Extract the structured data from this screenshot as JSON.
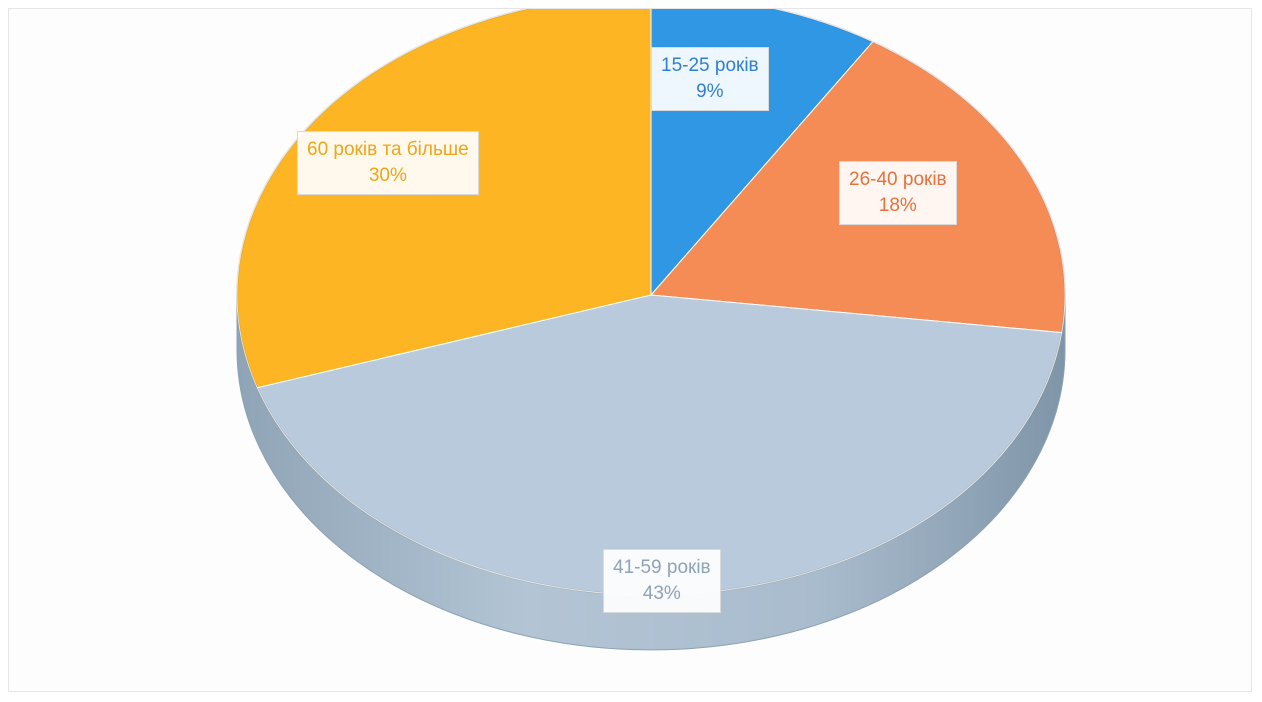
{
  "chart_data": {
    "type": "pie",
    "title": "",
    "style": "3d",
    "legend": "none",
    "slices": [
      {
        "label": "15-25 років",
        "value": 9,
        "percent_label": "9%",
        "color": "#2f97e3",
        "text_color": "#2f7fd0"
      },
      {
        "label": "26-40 років",
        "value": 18,
        "percent_label": "18%",
        "color": "#f58c56",
        "text_color": "#e8703a"
      },
      {
        "label": "41-59 років",
        "value": 43,
        "percent_label": "43%",
        "color": "#b8cadb",
        "text_color": "#8ea3b8"
      },
      {
        "label": "60 років та більше",
        "value": 30,
        "percent_label": "30%",
        "color": "#fdb523",
        "text_color": "#f0a417"
      }
    ]
  }
}
